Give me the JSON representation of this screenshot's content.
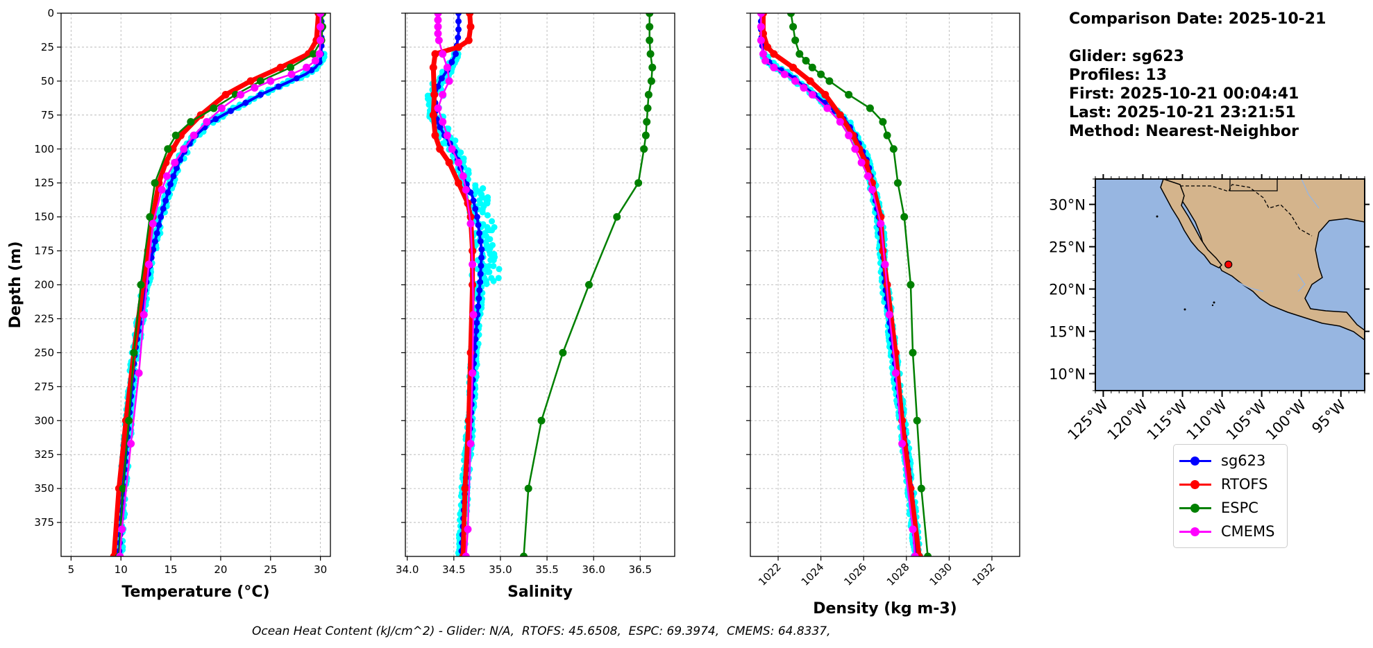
{
  "header": {
    "comparison_date": "Comparison Date: 2025-10-21",
    "glider": "Glider: sg623",
    "profiles": "Profiles: 13",
    "first": "First: 2025-10-21 00:04:41",
    "last": "Last: 2025-10-21 23:21:51",
    "method": "Method: Nearest-Neighbor"
  },
  "footer": {
    "ohc_text": "Ocean Heat Content (kJ/cm^2) - Glider: N/A,  RTOFS: 45.6508,  ESPC: 69.3974,  CMEMS: 64.8337,"
  },
  "legend": {
    "items": [
      {
        "label": "sg623",
        "color": "#0000ff"
      },
      {
        "label": "RTOFS",
        "color": "#ff0000"
      },
      {
        "label": "ESPC",
        "color": "#008000"
      },
      {
        "label": "CMEMS",
        "color": "#ff00ff"
      }
    ]
  },
  "colors": {
    "glider_scatter": "#00ffff",
    "ocean": "#97b6e1",
    "land": "#d4b48c",
    "marker": "#ff0000"
  },
  "chart_data": [
    {
      "type": "line",
      "name": "temperature",
      "xlabel": "Temperature (°C)",
      "ylabel": "Depth (m)",
      "xlim": [
        4,
        31
      ],
      "ylim": [
        400,
        0
      ],
      "xticks": [
        5,
        10,
        15,
        20,
        25,
        30
      ],
      "yticks": [
        0,
        25,
        50,
        75,
        100,
        125,
        150,
        175,
        200,
        225,
        250,
        275,
        300,
        325,
        350,
        375
      ],
      "grid": true,
      "series": [
        {
          "name": "sg623",
          "color": "#0000ff",
          "depth": [
            0,
            25,
            35,
            40,
            45,
            50,
            55,
            60,
            70,
            80,
            90,
            100,
            110,
            125,
            150,
            175,
            200,
            250,
            300,
            350,
            400
          ],
          "values": [
            30.1,
            30.1,
            30.0,
            29.5,
            28.5,
            27.0,
            25.5,
            24.0,
            21.5,
            19.0,
            17.5,
            16.5,
            15.8,
            15.0,
            14.0,
            13.2,
            12.5,
            11.4,
            10.8,
            10.2,
            9.8
          ]
        },
        {
          "name": "RTOFS",
          "color": "#ff0000",
          "depth": [
            0,
            20,
            30,
            40,
            50,
            60,
            75,
            90,
            100,
            110,
            125,
            150,
            175,
            200,
            250,
            300,
            350,
            400
          ],
          "values": [
            29.8,
            29.6,
            28.8,
            26.0,
            23.0,
            20.5,
            18.0,
            16.0,
            15.2,
            14.5,
            13.8,
            13.2,
            12.7,
            12.2,
            11.3,
            10.5,
            9.8,
            9.3
          ]
        },
        {
          "name": "ESPC",
          "color": "#008000",
          "depth": [
            0,
            10,
            20,
            30,
            40,
            50,
            60,
            70,
            80,
            90,
            100,
            125,
            150,
            200,
            250,
            300,
            350,
            400
          ],
          "values": [
            30.2,
            30.2,
            30.1,
            29.3,
            27.0,
            24.0,
            21.5,
            19.3,
            17.0,
            15.5,
            14.7,
            13.4,
            12.9,
            12.0,
            11.3,
            10.8,
            10.2,
            9.8
          ]
        },
        {
          "name": "CMEMS",
          "color": "#ff00ff",
          "depth": [
            0,
            10,
            20,
            30,
            35,
            40,
            45,
            50,
            55,
            60,
            70,
            80,
            90,
            100,
            110,
            120,
            130,
            155,
            185,
            222,
            265,
            317,
            380,
            400
          ],
          "values": [
            30.0,
            30.0,
            30.0,
            29.9,
            29.5,
            28.6,
            27.1,
            25.0,
            23.4,
            22.0,
            20.1,
            18.6,
            17.3,
            16.3,
            15.4,
            14.6,
            14.1,
            13.2,
            12.8,
            12.3,
            11.8,
            11.0,
            10.1,
            9.9
          ]
        }
      ]
    },
    {
      "type": "line",
      "name": "salinity",
      "xlabel": "Salinity",
      "ylabel": "",
      "xlim": [
        33.98,
        36.87
      ],
      "ylim": [
        400,
        0
      ],
      "xticks": [
        34.0,
        34.5,
        35.0,
        35.5,
        36.0,
        36.5
      ],
      "yticks": [
        0,
        25,
        50,
        75,
        100,
        125,
        150,
        175,
        200,
        225,
        250,
        275,
        300,
        325,
        350,
        375
      ],
      "grid": true,
      "series": [
        {
          "name": "sg623",
          "color": "#0000ff",
          "depth": [
            0,
            15,
            30,
            40,
            50,
            60,
            70,
            80,
            90,
            100,
            110,
            125,
            135,
            150,
            175,
            200,
            250,
            300,
            350,
            400
          ],
          "values": [
            34.55,
            34.55,
            34.52,
            34.45,
            34.35,
            34.3,
            34.3,
            34.32,
            34.4,
            34.5,
            34.55,
            34.63,
            34.7,
            34.75,
            34.8,
            34.78,
            34.72,
            34.68,
            34.62,
            34.58
          ]
        },
        {
          "name": "RTOFS",
          "color": "#ff0000",
          "depth": [
            0,
            10,
            20,
            25,
            30,
            40,
            60,
            75,
            90,
            100,
            110,
            125,
            140,
            150,
            175,
            200,
            250,
            300,
            350,
            400
          ],
          "values": [
            34.67,
            34.68,
            34.66,
            34.55,
            34.3,
            34.28,
            34.29,
            34.28,
            34.3,
            34.35,
            34.45,
            34.55,
            34.65,
            34.68,
            34.7,
            34.7,
            34.68,
            34.66,
            34.62,
            34.6
          ]
        },
        {
          "name": "ESPC",
          "color": "#008000",
          "depth": [
            0,
            10,
            20,
            30,
            40,
            50,
            60,
            70,
            80,
            90,
            100,
            125,
            150,
            200,
            250,
            300,
            350,
            400
          ],
          "values": [
            36.6,
            36.6,
            36.6,
            36.61,
            36.63,
            36.62,
            36.59,
            36.58,
            36.57,
            36.56,
            36.54,
            36.48,
            36.25,
            35.95,
            35.67,
            35.44,
            35.3,
            35.25
          ]
        },
        {
          "name": "CMEMS",
          "color": "#ff00ff",
          "depth": [
            0,
            5,
            10,
            15,
            20,
            30,
            40,
            50,
            60,
            70,
            80,
            90,
            100,
            110,
            120,
            130,
            155,
            185,
            222,
            265,
            317,
            380,
            400
          ],
          "values": [
            34.33,
            34.33,
            34.33,
            34.33,
            34.34,
            34.38,
            34.43,
            34.45,
            34.38,
            34.33,
            34.38,
            34.43,
            34.48,
            34.55,
            34.6,
            34.63,
            34.68,
            34.7,
            34.71,
            34.7,
            34.68,
            34.65,
            34.63
          ]
        }
      ]
    },
    {
      "type": "line",
      "name": "density",
      "xlabel": "Density (kg m-3)",
      "ylabel": "",
      "xlim": [
        1020.7,
        1033.3
      ],
      "ylim": [
        400,
        0
      ],
      "xticks": [
        1022,
        1024,
        1026,
        1028,
        1030,
        1032
      ],
      "yticks": [
        0,
        25,
        50,
        75,
        100,
        125,
        150,
        175,
        200,
        225,
        250,
        275,
        300,
        325,
        350,
        375
      ],
      "grid": true,
      "series": [
        {
          "name": "sg623",
          "color": "#0000ff",
          "depth": [
            0,
            15,
            30,
            35,
            40,
            45,
            50,
            55,
            60,
            70,
            80,
            90,
            100,
            110,
            125,
            150,
            175,
            200,
            250,
            300,
            350,
            400
          ],
          "values": [
            1021.2,
            1021.2,
            1021.3,
            1021.5,
            1021.9,
            1022.5,
            1022.9,
            1023.3,
            1023.7,
            1024.5,
            1025.2,
            1025.6,
            1025.9,
            1026.2,
            1026.4,
            1026.7,
            1026.9,
            1027.0,
            1027.4,
            1027.8,
            1028.2,
            1028.5
          ]
        },
        {
          "name": "RTOFS",
          "color": "#ff0000",
          "depth": [
            0,
            15,
            25,
            30,
            40,
            50,
            60,
            75,
            90,
            100,
            110,
            125,
            150,
            175,
            200,
            250,
            300,
            350,
            400
          ],
          "values": [
            1021.3,
            1021.3,
            1021.5,
            1021.8,
            1022.7,
            1023.5,
            1024.2,
            1024.9,
            1025.5,
            1025.8,
            1026.1,
            1026.4,
            1026.8,
            1026.9,
            1027.1,
            1027.5,
            1027.8,
            1028.2,
            1028.6
          ]
        },
        {
          "name": "ESPC",
          "color": "#008000",
          "depth": [
            0,
            10,
            20,
            30,
            35,
            40,
            45,
            50,
            60,
            70,
            80,
            90,
            100,
            125,
            150,
            200,
            250,
            300,
            350,
            400
          ],
          "values": [
            1022.6,
            1022.7,
            1022.8,
            1023.0,
            1023.3,
            1023.6,
            1024.0,
            1024.4,
            1025.3,
            1026.3,
            1026.9,
            1027.1,
            1027.4,
            1027.6,
            1027.9,
            1028.2,
            1028.3,
            1028.5,
            1028.7,
            1029.0
          ]
        },
        {
          "name": "CMEMS",
          "color": "#ff00ff",
          "depth": [
            0,
            10,
            20,
            30,
            35,
            40,
            45,
            50,
            55,
            60,
            70,
            80,
            90,
            100,
            110,
            120,
            130,
            155,
            185,
            222,
            265,
            317,
            380,
            400
          ],
          "values": [
            1021.2,
            1021.2,
            1021.2,
            1021.3,
            1021.4,
            1021.8,
            1022.3,
            1022.8,
            1023.2,
            1023.6,
            1024.3,
            1024.9,
            1025.3,
            1025.6,
            1025.9,
            1026.2,
            1026.4,
            1026.8,
            1027.0,
            1027.2,
            1027.5,
            1027.8,
            1028.3,
            1028.4
          ]
        }
      ]
    },
    {
      "type": "map",
      "name": "location",
      "lon_range": [
        -126,
        -92
      ],
      "lat_range": [
        8,
        33
      ],
      "xticks": [
        "125°W",
        "120°W",
        "115°W",
        "110°W",
        "105°W",
        "100°W",
        "95°W"
      ],
      "yticks": [
        "30°N",
        "25°N",
        "20°N",
        "15°N",
        "10°N"
      ],
      "glider_position": {
        "lon": -109.2,
        "lat": 22.9
      }
    }
  ]
}
